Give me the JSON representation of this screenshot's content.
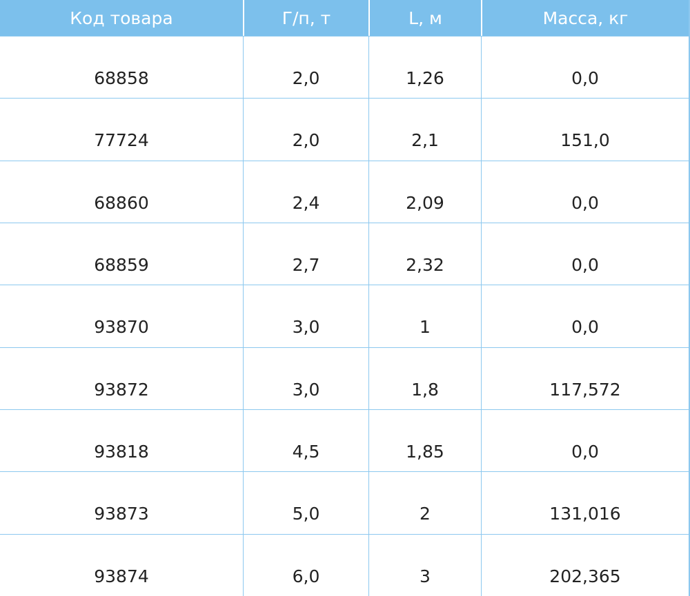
{
  "table": {
    "header": [
      "Код товара",
      "Г/п, т",
      "L, м",
      "Масса, кг"
    ],
    "rows": [
      [
        "68858",
        "2,0",
        "1,26",
        "0,0"
      ],
      [
        "77724",
        "2,0",
        "2,1",
        "151,0"
      ],
      [
        "68860",
        "2,4",
        "2,09",
        "0,0"
      ],
      [
        "68859",
        "2,7",
        "2,32",
        "0,0"
      ],
      [
        "93870",
        "3,0",
        "1",
        "0,0"
      ],
      [
        "93872",
        "3,0",
        "1,8",
        "117,572"
      ],
      [
        "93818",
        "4,5",
        "1,85",
        "0,0"
      ],
      [
        "93873",
        "5,0",
        "2",
        "131,016"
      ],
      [
        "93874",
        "6,0",
        "3",
        "202,365"
      ]
    ]
  }
}
